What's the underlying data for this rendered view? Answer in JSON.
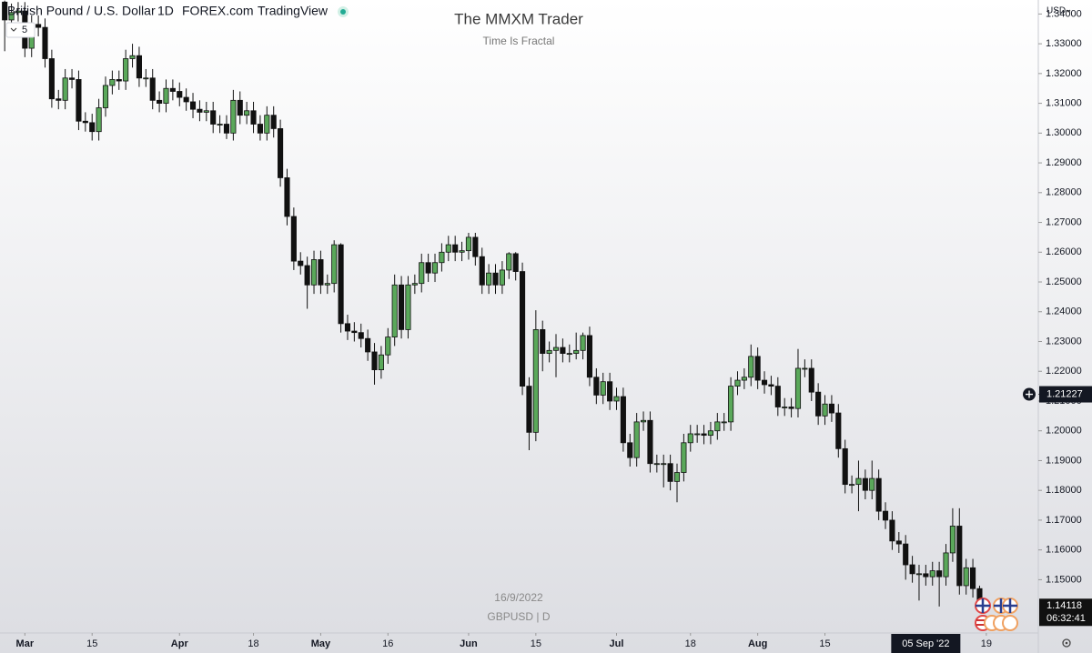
{
  "header": {
    "symbol": "British Pound / U.S. Dollar",
    "interval": "1D",
    "source": "FOREX.com",
    "platform": "TradingView",
    "bar_count": "5"
  },
  "chart_data": {
    "type": "candlestick",
    "title": "The MMXM Trader",
    "subtitle": "Time Is Fractal",
    "date_watermark": "16/9/2022",
    "symbol_watermark": "GBPUSD | D",
    "currency": "USD",
    "up_color": "#5aa85a",
    "down_color": "#111111",
    "outline_color": "#111111",
    "xlim": [
      -0.7,
      153.6
    ],
    "ylim": [
      1.1321,
      1.3447
    ],
    "xticks": [
      {
        "value": 3,
        "label": "Mar"
      },
      {
        "value": 13,
        "label": "15"
      },
      {
        "value": 26,
        "label": "Apr"
      },
      {
        "value": 37,
        "label": "18"
      },
      {
        "value": 47,
        "label": "May"
      },
      {
        "value": 57,
        "label": "16"
      },
      {
        "value": 69,
        "label": "Jun"
      },
      {
        "value": 79,
        "label": "15"
      },
      {
        "value": 91,
        "label": "Jul"
      },
      {
        "value": 102,
        "label": "18"
      },
      {
        "value": 112,
        "label": "Aug"
      },
      {
        "value": 122,
        "label": "15"
      },
      {
        "value": 146,
        "label": "19"
      }
    ],
    "yticks": [
      {
        "value": 1.15,
        "label": "1.15000"
      },
      {
        "value": 1.16,
        "label": "1.16000"
      },
      {
        "value": 1.17,
        "label": "1.17000"
      },
      {
        "value": 1.18,
        "label": "1.18000"
      },
      {
        "value": 1.19,
        "label": "1.19000"
      },
      {
        "value": 1.2,
        "label": "1.20000"
      },
      {
        "value": 1.21,
        "label": "1.21000"
      },
      {
        "value": 1.22,
        "label": "1.22000"
      },
      {
        "value": 1.23,
        "label": "1.23000"
      },
      {
        "value": 1.24,
        "label": "1.24000"
      },
      {
        "value": 1.25,
        "label": "1.25000"
      },
      {
        "value": 1.26,
        "label": "1.26000"
      },
      {
        "value": 1.27,
        "label": "1.27000"
      },
      {
        "value": 1.28,
        "label": "1.28000"
      },
      {
        "value": 1.29,
        "label": "1.29000"
      },
      {
        "value": 1.3,
        "label": "1.30000"
      },
      {
        "value": 1.31,
        "label": "1.31000"
      },
      {
        "value": 1.32,
        "label": "1.32000"
      },
      {
        "value": 1.33,
        "label": "1.33000"
      },
      {
        "value": 1.34,
        "label": "1.34000"
      }
    ],
    "crosshair_price": 1.21227,
    "crosshair_time": {
      "value": 137,
      "label": "05 Sep '22"
    },
    "last_price": 1.14118,
    "countdown": "06:32:41",
    "open": [
      1.344,
      1.338,
      1.3405,
      1.341,
      1.3285,
      1.3365,
      1.3355,
      1.325,
      1.3115,
      1.311,
      1.3185,
      1.318,
      1.304,
      1.3035,
      1.3005,
      1.3085,
      1.316,
      1.318,
      1.3175,
      1.325,
      1.326,
      1.3185,
      1.3185,
      1.311,
      1.31,
      1.315,
      1.314,
      1.312,
      1.3105,
      1.308,
      1.307,
      1.3075,
      1.303,
      1.303,
      1.3,
      1.311,
      1.306,
      1.3075,
      1.303,
      1.3,
      1.306,
      1.3015,
      1.285,
      1.272,
      1.257,
      1.2555,
      1.249,
      1.2575,
      1.249,
      1.2495,
      1.2625,
      1.236,
      1.2335,
      1.233,
      1.231,
      1.2265,
      1.2205,
      1.2255,
      1.2315,
      1.249,
      1.234,
      1.249,
      1.2495,
      1.2565,
      1.253,
      1.2565,
      1.26,
      1.2625,
      1.26,
      1.2605,
      1.265,
      1.2585,
      1.249,
      1.253,
      1.249,
      1.254,
      1.2595,
      1.2535,
      1.215,
      1.1995,
      1.234,
      1.226,
      1.227,
      1.228,
      1.226,
      1.226,
      1.227,
      1.232,
      1.218,
      1.212,
      1.2165,
      1.21,
      1.2115,
      1.196,
      1.191,
      1.203,
      1.2035,
      1.189,
      1.189,
      1.189,
      1.183,
      1.186,
      1.196,
      1.199,
      1.199,
      1.1985,
      1.2,
      1.203,
      1.203,
      1.215,
      1.217,
      1.218,
      1.225,
      1.217,
      1.2155,
      1.215,
      1.208,
      1.208,
      1.2075,
      1.221,
      1.221,
      1.213,
      1.205,
      1.209,
      1.206,
      1.194,
      1.182,
      1.182,
      1.184,
      1.18,
      1.184,
      1.173,
      1.17,
      1.163,
      1.162,
      1.155,
      1.152,
      1.152,
      1.151,
      1.153,
      1.151,
      1.159,
      1.168,
      1.148,
      1.154,
      1.147
    ],
    "high": [
      1.3445,
      1.3435,
      1.344,
      1.344,
      1.3395,
      1.3395,
      1.3385,
      1.328,
      1.3145,
      1.3215,
      1.3215,
      1.321,
      1.307,
      1.3065,
      1.3115,
      1.319,
      1.321,
      1.321,
      1.328,
      1.33,
      1.329,
      1.3215,
      1.3215,
      1.314,
      1.318,
      1.318,
      1.317,
      1.315,
      1.3135,
      1.311,
      1.3105,
      1.3105,
      1.306,
      1.306,
      1.3145,
      1.314,
      1.3105,
      1.3105,
      1.306,
      1.309,
      1.309,
      1.3045,
      1.288,
      1.275,
      1.26,
      1.2585,
      1.2605,
      1.2605,
      1.2525,
      1.264,
      1.263,
      1.239,
      1.2365,
      1.236,
      1.234,
      1.2295,
      1.2285,
      1.2345,
      1.2525,
      1.252,
      1.252,
      1.2525,
      1.2595,
      1.2595,
      1.2595,
      1.263,
      1.2655,
      1.2655,
      1.2635,
      1.2665,
      1.2665,
      1.2615,
      1.256,
      1.256,
      1.257,
      1.26,
      1.26,
      1.2565,
      1.218,
      1.2405,
      1.237,
      1.23,
      1.2325,
      1.231,
      1.229,
      1.233,
      1.233,
      1.235,
      1.221,
      1.2195,
      1.2195,
      1.2145,
      1.2145,
      1.199,
      1.206,
      1.2065,
      1.2065,
      1.192,
      1.192,
      1.192,
      1.189,
      1.199,
      1.202,
      1.202,
      1.202,
      1.203,
      1.206,
      1.206,
      1.218,
      1.22,
      1.221,
      1.229,
      1.228,
      1.22,
      1.2185,
      1.218,
      1.211,
      1.211,
      1.2275,
      1.224,
      1.224,
      1.216,
      1.212,
      1.212,
      1.209,
      1.197,
      1.185,
      1.19,
      1.187,
      1.19,
      1.187,
      1.176,
      1.173,
      1.166,
      1.165,
      1.158,
      1.155,
      1.155,
      1.156,
      1.156,
      1.162,
      1.174,
      1.174,
      1.157,
      1.157,
      1.148
    ],
    "low": [
      1.3275,
      1.335,
      1.3375,
      1.3255,
      1.3255,
      1.3325,
      1.322,
      1.3085,
      1.308,
      1.308,
      1.315,
      1.301,
      1.3005,
      1.2975,
      1.2975,
      1.3055,
      1.313,
      1.3145,
      1.3145,
      1.322,
      1.3155,
      1.3155,
      1.308,
      1.307,
      1.307,
      1.311,
      1.309,
      1.3075,
      1.305,
      1.304,
      1.304,
      1.3,
      1.3,
      1.298,
      1.2975,
      1.303,
      1.303,
      1.3,
      1.2975,
      1.2975,
      1.2985,
      1.282,
      1.269,
      1.254,
      1.2525,
      1.241,
      1.246,
      1.246,
      1.246,
      1.2465,
      1.233,
      1.2305,
      1.23,
      1.228,
      1.2235,
      1.2155,
      1.2175,
      1.2225,
      1.2285,
      1.231,
      1.231,
      1.246,
      1.2465,
      1.25,
      1.25,
      1.2535,
      1.257,
      1.257,
      1.257,
      1.2575,
      1.2555,
      1.246,
      1.246,
      1.246,
      1.246,
      1.251,
      1.2505,
      1.212,
      1.1935,
      1.1965,
      1.22,
      1.223,
      1.218,
      1.223,
      1.223,
      1.224,
      1.224,
      1.215,
      1.209,
      1.209,
      1.207,
      1.207,
      1.193,
      1.188,
      1.188,
      1.2,
      1.186,
      1.186,
      1.181,
      1.18,
      1.176,
      1.183,
      1.193,
      1.196,
      1.1955,
      1.1955,
      1.197,
      1.2,
      1.2,
      1.212,
      1.214,
      1.215,
      1.214,
      1.2125,
      1.212,
      1.205,
      1.205,
      1.2045,
      1.2045,
      1.218,
      1.21,
      1.202,
      1.202,
      1.203,
      1.191,
      1.179,
      1.179,
      1.173,
      1.177,
      1.177,
      1.17,
      1.167,
      1.16,
      1.159,
      1.15,
      1.149,
      1.143,
      1.148,
      1.148,
      1.141,
      1.148,
      1.156,
      1.145,
      1.145,
      1.144,
      1.1405
    ],
    "close": [
      1.338,
      1.3405,
      1.341,
      1.3285,
      1.3365,
      1.3355,
      1.325,
      1.3115,
      1.311,
      1.3185,
      1.318,
      1.304,
      1.3035,
      1.3005,
      1.3085,
      1.316,
      1.318,
      1.3175,
      1.325,
      1.326,
      1.3185,
      1.3185,
      1.311,
      1.31,
      1.315,
      1.314,
      1.312,
      1.3105,
      1.308,
      1.307,
      1.3075,
      1.303,
      1.303,
      1.3,
      1.311,
      1.306,
      1.3075,
      1.303,
      1.3,
      1.306,
      1.3015,
      1.285,
      1.272,
      1.257,
      1.2555,
      1.249,
      1.2575,
      1.249,
      1.2495,
      1.2625,
      1.236,
      1.2335,
      1.233,
      1.231,
      1.2265,
      1.2205,
      1.2255,
      1.2315,
      1.249,
      1.234,
      1.249,
      1.2495,
      1.2565,
      1.253,
      1.2565,
      1.26,
      1.2625,
      1.26,
      1.2605,
      1.265,
      1.2585,
      1.249,
      1.253,
      1.249,
      1.254,
      1.2595,
      1.2535,
      1.215,
      1.1995,
      1.234,
      1.226,
      1.227,
      1.228,
      1.226,
      1.226,
      1.227,
      1.232,
      1.218,
      1.212,
      1.2165,
      1.21,
      1.2115,
      1.196,
      1.191,
      1.203,
      1.2035,
      1.189,
      1.189,
      1.189,
      1.183,
      1.186,
      1.196,
      1.199,
      1.199,
      1.1985,
      1.2,
      1.203,
      1.203,
      1.215,
      1.217,
      1.218,
      1.225,
      1.217,
      1.2155,
      1.215,
      1.208,
      1.208,
      1.2075,
      1.221,
      1.221,
      1.213,
      1.205,
      1.209,
      1.206,
      1.194,
      1.182,
      1.182,
      1.184,
      1.18,
      1.184,
      1.173,
      1.17,
      1.163,
      1.162,
      1.155,
      1.152,
      1.152,
      1.151,
      1.153,
      1.151,
      1.159,
      1.168,
      1.148,
      1.154,
      1.147,
      1.1412
    ]
  }
}
